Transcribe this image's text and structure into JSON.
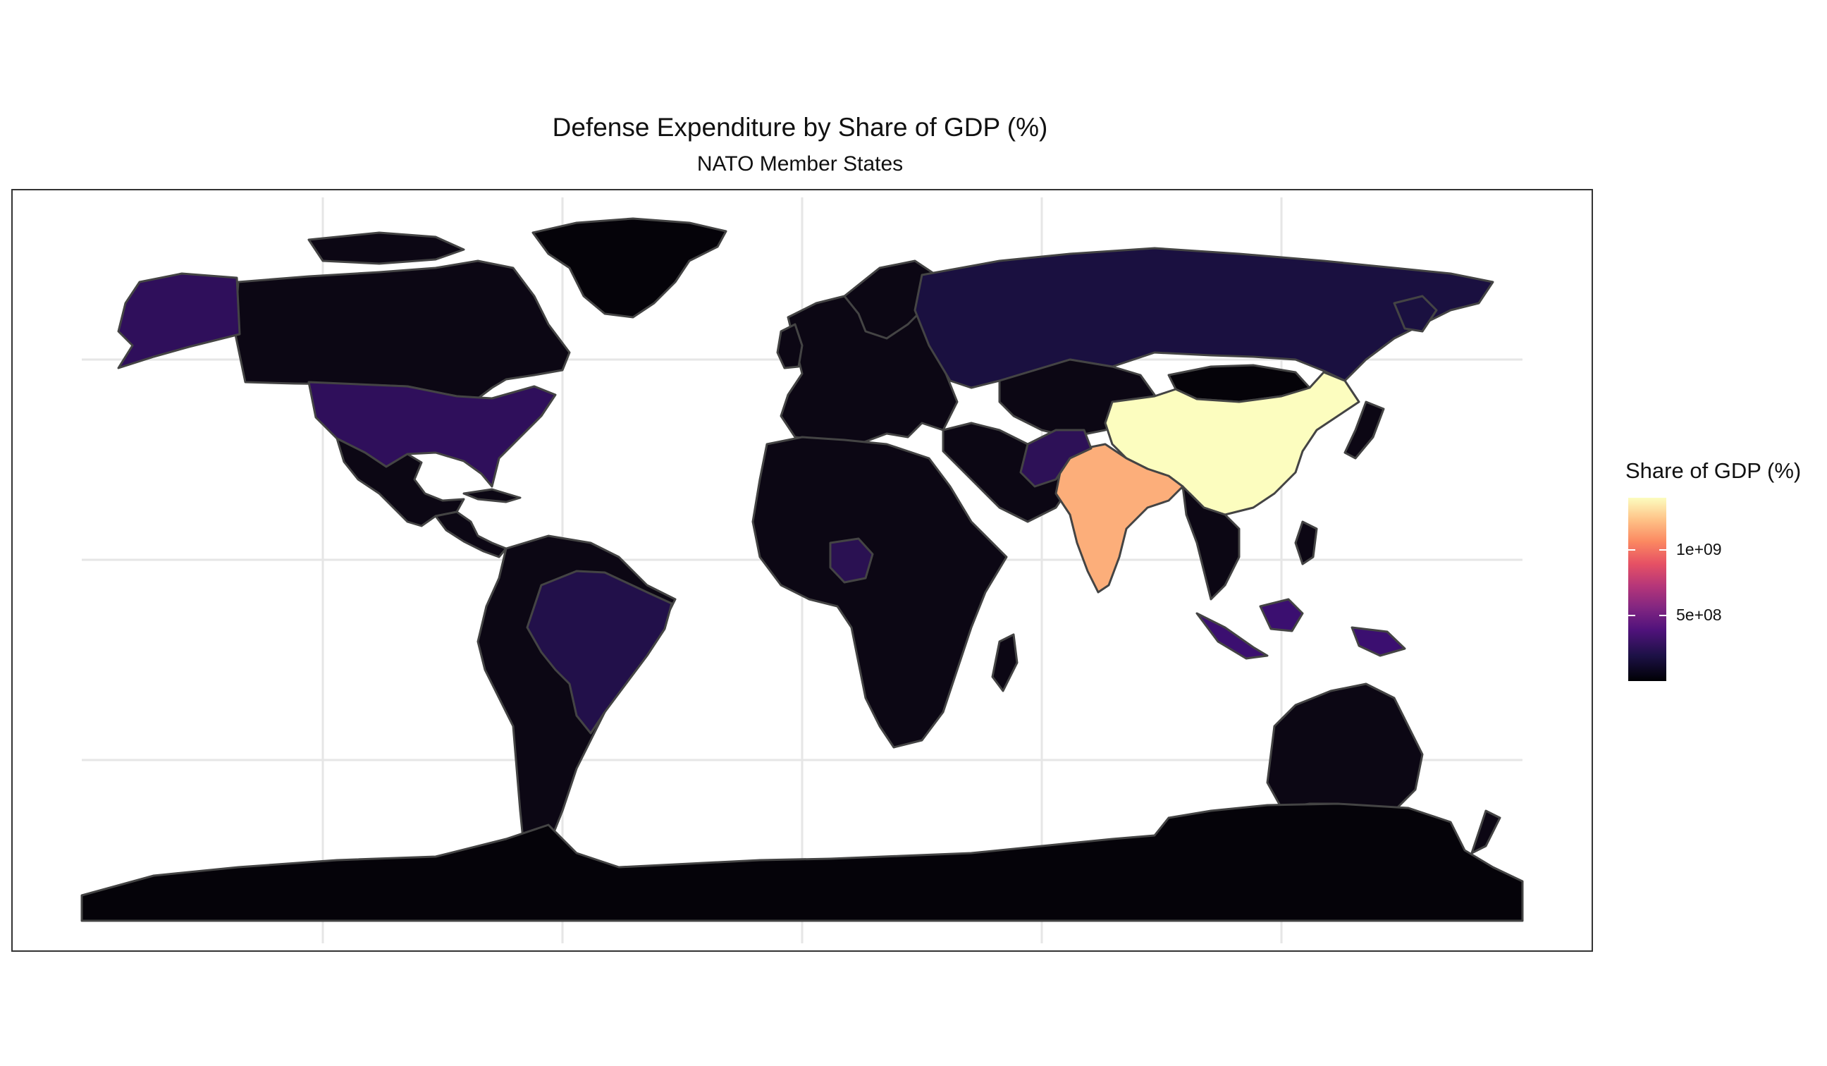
{
  "title": "Defense Expenditure by Share of GDP (%)",
  "subtitle": "NATO Member States",
  "legend": {
    "title": "Share of GDP (%)",
    "ticks": [
      {
        "label": "1e+09",
        "value": 1000000000
      },
      {
        "label": "5e+08",
        "value": 500000000
      }
    ],
    "scale_min": 0,
    "scale_max": 1400000000,
    "palette": "magma"
  },
  "colors": {
    "background": "#ffffff",
    "border": "#444444",
    "grid": "#e6e6e6",
    "china": "#fcfdbf",
    "india": "#fcae7a",
    "usa": "#2f0f5b",
    "brazil": "#22104a",
    "russia": "#1a1040",
    "indonesia": "#3b0f70",
    "nigeria": "#2a1152",
    "pakistan": "#2d1157",
    "low": "#0c0714",
    "lowest": "#050309"
  },
  "chart_data": {
    "type": "map",
    "title": "Defense Expenditure by Share of GDP (%)",
    "subtitle": "NATO Member States",
    "legend_title": "Share of GDP (%)",
    "grid": true,
    "legend_position": "right",
    "regions": [
      {
        "name": "China",
        "value": 1400000000
      },
      {
        "name": "India",
        "value": 1300000000
      },
      {
        "name": "United States",
        "value": 320000000
      },
      {
        "name": "Indonesia",
        "value": 260000000
      },
      {
        "name": "Brazil",
        "value": 200000000
      },
      {
        "name": "Pakistan",
        "value": 190000000
      },
      {
        "name": "Nigeria",
        "value": 180000000
      },
      {
        "name": "Russia",
        "value": 145000000
      },
      {
        "name": "Alaska",
        "value": 320000000
      }
    ]
  }
}
